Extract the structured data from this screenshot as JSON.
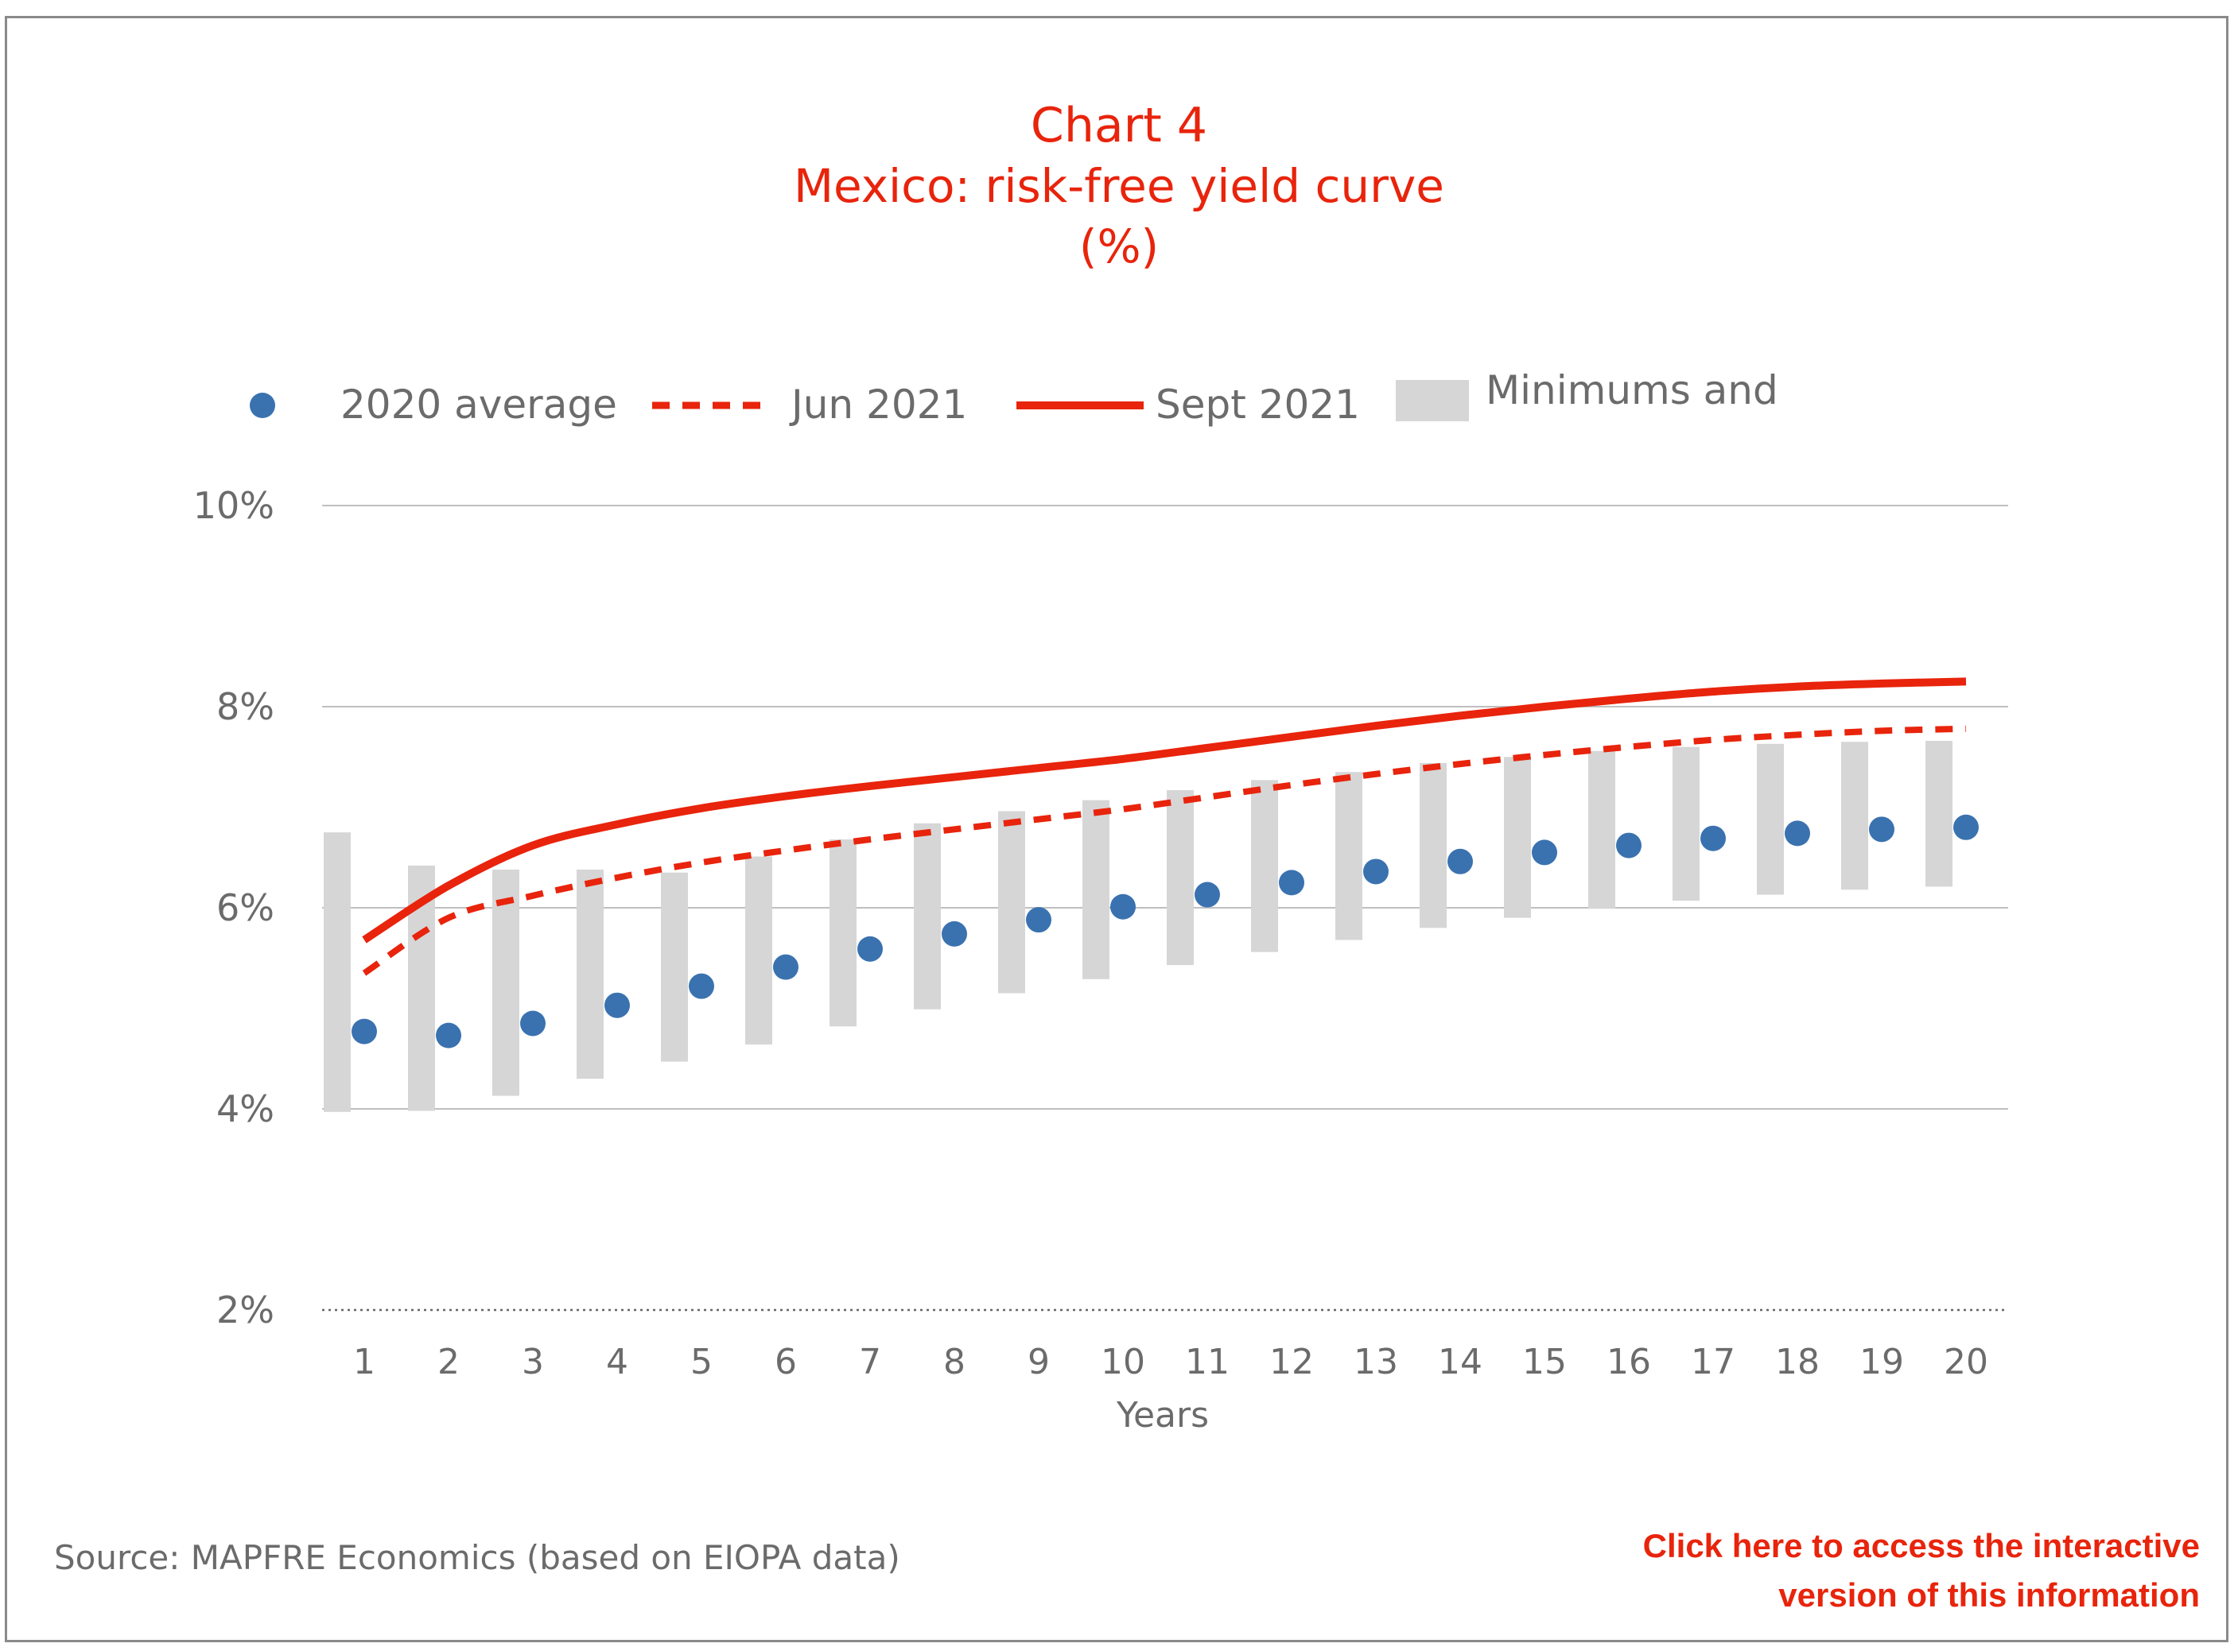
{
  "chart_data": {
    "type": "line",
    "title": "Chart 4",
    "subtitle": "Mexico: risk-free yield curve",
    "unit": "(%)",
    "xlabel": "Years",
    "ylabel": "",
    "categories": [
      "1",
      "2",
      "3",
      "4",
      "5",
      "6",
      "7",
      "8",
      "9",
      "10",
      "11",
      "12",
      "13",
      "14",
      "15",
      "16",
      "17",
      "18",
      "19",
      "20"
    ],
    "ylim": [
      2,
      10
    ],
    "yticks": [
      2,
      4,
      6,
      8,
      10
    ],
    "ytick_labels": [
      "2%",
      "4%",
      "6%",
      "8%",
      "10%"
    ],
    "grid": true,
    "legend_position": "top",
    "series": [
      {
        "name": "2020 average",
        "kind": "scatter",
        "color": "#3a72b0",
        "values": [
          4.77,
          4.73,
          4.85,
          5.03,
          5.22,
          5.41,
          5.59,
          5.74,
          5.88,
          6.01,
          6.13,
          6.25,
          6.36,
          6.46,
          6.55,
          6.62,
          6.69,
          6.74,
          6.78,
          6.8
        ]
      },
      {
        "name": "Jun 2021",
        "kind": "dashed-line",
        "color": "#e8240c",
        "values": [
          5.35,
          5.9,
          6.12,
          6.3,
          6.45,
          6.57,
          6.68,
          6.78,
          6.88,
          6.98,
          7.1,
          7.22,
          7.33,
          7.43,
          7.52,
          7.6,
          7.67,
          7.72,
          7.76,
          7.78
        ]
      },
      {
        "name": "Sept 2021",
        "kind": "solid-line",
        "color": "#e8240c",
        "values": [
          5.68,
          6.22,
          6.62,
          6.83,
          6.99,
          7.11,
          7.21,
          7.3,
          7.39,
          7.48,
          7.59,
          7.7,
          7.81,
          7.91,
          8.0,
          8.08,
          8.15,
          8.2,
          8.23,
          8.25
        ]
      },
      {
        "name": "Minimums and",
        "kind": "range-bar",
        "color": "#d6d6d6",
        "min": [
          3.97,
          3.98,
          4.13,
          4.3,
          4.47,
          4.64,
          4.82,
          4.99,
          5.15,
          5.29,
          5.43,
          5.56,
          5.68,
          5.8,
          5.9,
          5.99,
          6.07,
          6.13,
          6.18,
          6.21
        ],
        "max": [
          6.75,
          6.42,
          6.38,
          6.38,
          6.35,
          6.51,
          6.68,
          6.84,
          6.96,
          7.07,
          7.17,
          7.27,
          7.35,
          7.44,
          7.5,
          7.56,
          7.6,
          7.63,
          7.65,
          7.66
        ]
      }
    ]
  },
  "source": "Source: MAPFRE Economics (based on EIOPA data)",
  "cta": {
    "line1": "Click here to access the interactive",
    "line2": "version of this information"
  },
  "colors": {
    "accent": "#e8240c",
    "dots": "#3a72b0",
    "range": "#d6d6d6",
    "text": "#6b6b6b",
    "grid": "#bfbfbf"
  }
}
